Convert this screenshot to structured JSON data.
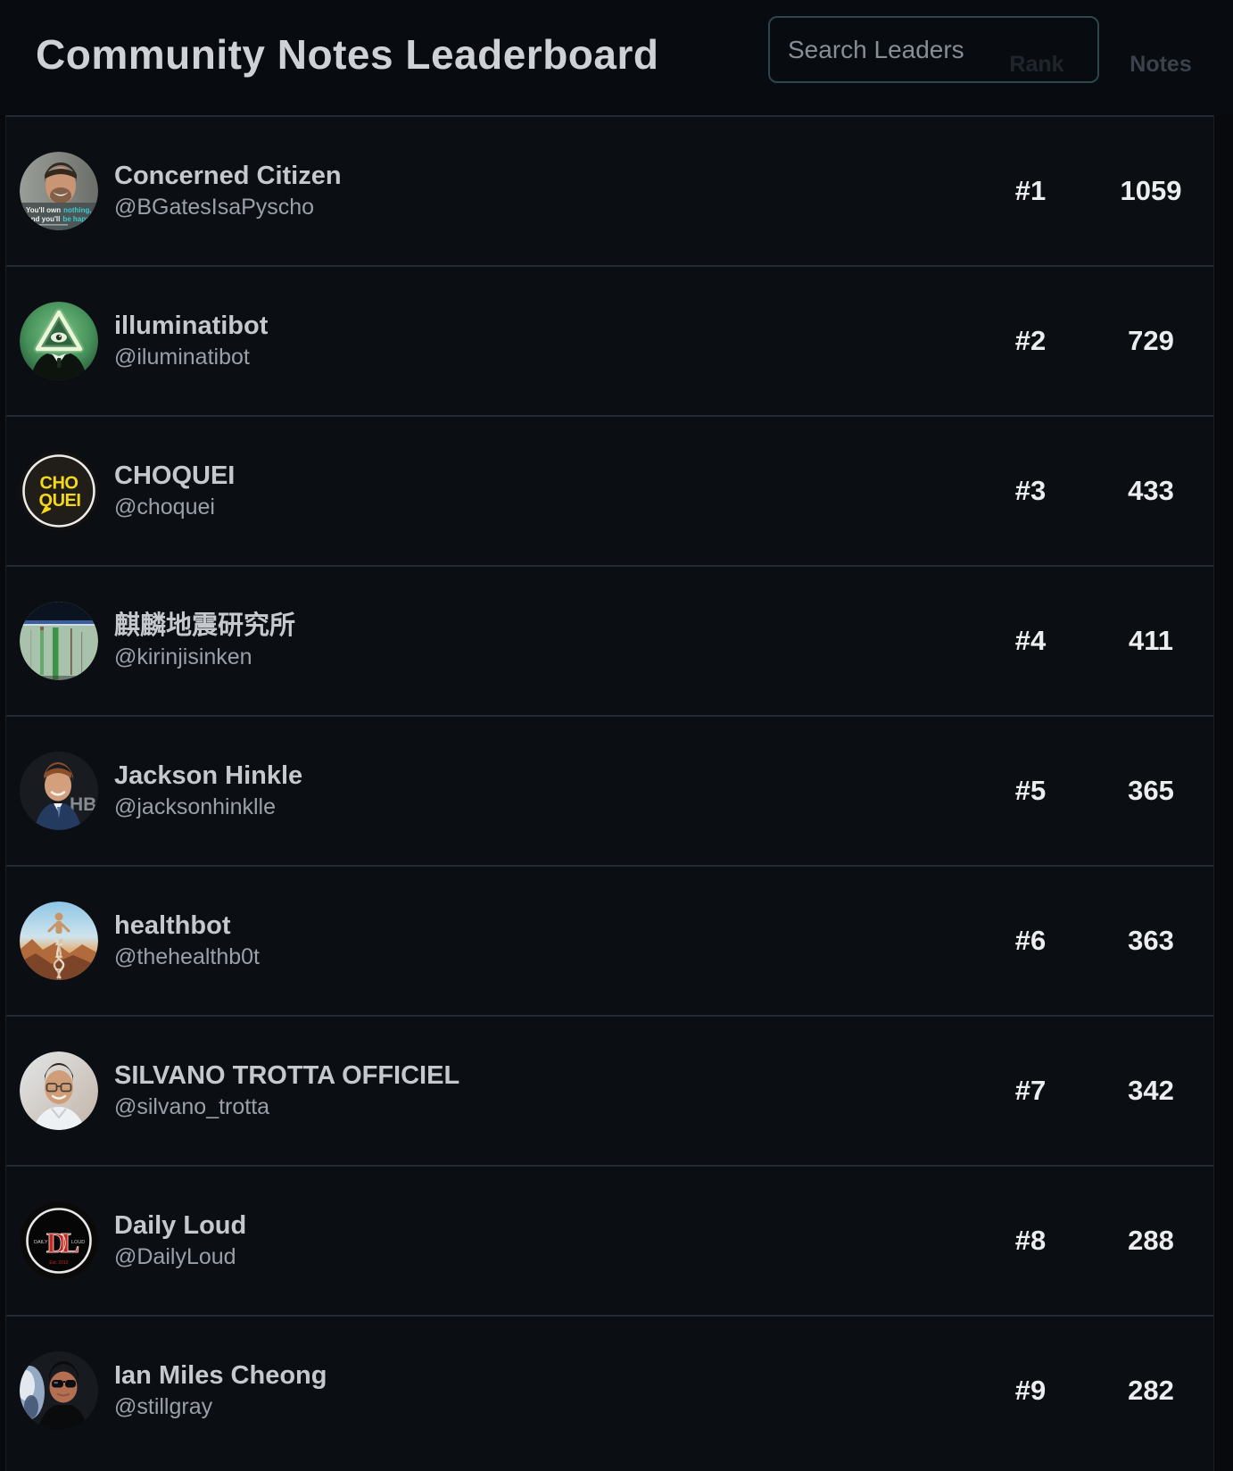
{
  "page": {
    "title": "Community Notes Leaderboard"
  },
  "search": {
    "placeholder": "Search Leaders"
  },
  "columns": {
    "rank": "Rank",
    "notes": "Notes"
  },
  "colors": {
    "background": "#07090d",
    "row_background": "#0b0e13",
    "search_border_accent": "#2c474c",
    "value_text": "#ebedef",
    "choquei_yellow": "#f5d71c",
    "daily_loud_red": "#c3271f",
    "illuminati_green": "#46915a"
  },
  "leaders": [
    {
      "rank": "#1",
      "name": "Concerned Citizen",
      "handle": "@BGatesIsaPyscho",
      "notes": 1059,
      "avatar": "concerned-citizen",
      "avatar_text": [
        "You'll own",
        "nothing,",
        "And you'll",
        "be happy"
      ]
    },
    {
      "rank": "#2",
      "name": "illuminatibot",
      "handle": "@iluminatibot",
      "notes": 729,
      "avatar": "illuminatibot",
      "avatar_text": []
    },
    {
      "rank": "#3",
      "name": "CHOQUEI",
      "handle": "@choquei",
      "notes": 433,
      "avatar": "choquei",
      "avatar_text": [
        "CHO",
        "QUEI"
      ]
    },
    {
      "rank": "#4",
      "name": "麒麟地震研究所",
      "handle": "@kirinjisinken",
      "notes": 411,
      "avatar": "kirin-seismograph",
      "avatar_text": []
    },
    {
      "rank": "#5",
      "name": "Jackson Hinkle",
      "handle": "@jacksonhinklle",
      "notes": 365,
      "avatar": "jackson-hinkle",
      "avatar_text": [
        "HB"
      ]
    },
    {
      "rank": "#6",
      "name": "healthbot",
      "handle": "@thehealthb0t",
      "notes": 363,
      "avatar": "healthbot",
      "avatar_text": []
    },
    {
      "rank": "#7",
      "name": "SILVANO TROTTA OFFICIEL",
      "handle": "@silvano_trotta",
      "notes": 342,
      "avatar": "silvano-trotta",
      "avatar_text": []
    },
    {
      "rank": "#8",
      "name": "Daily Loud",
      "handle": "@DailyLoud",
      "notes": 288,
      "avatar": "daily-loud",
      "avatar_text": [
        "DL",
        "DAILY",
        "LOUD",
        "Est. 2012"
      ]
    },
    {
      "rank": "#9",
      "name": "Ian Miles Cheong",
      "handle": "@stillgray",
      "notes": 282,
      "avatar": "ian-miles-cheong",
      "avatar_text": []
    }
  ]
}
